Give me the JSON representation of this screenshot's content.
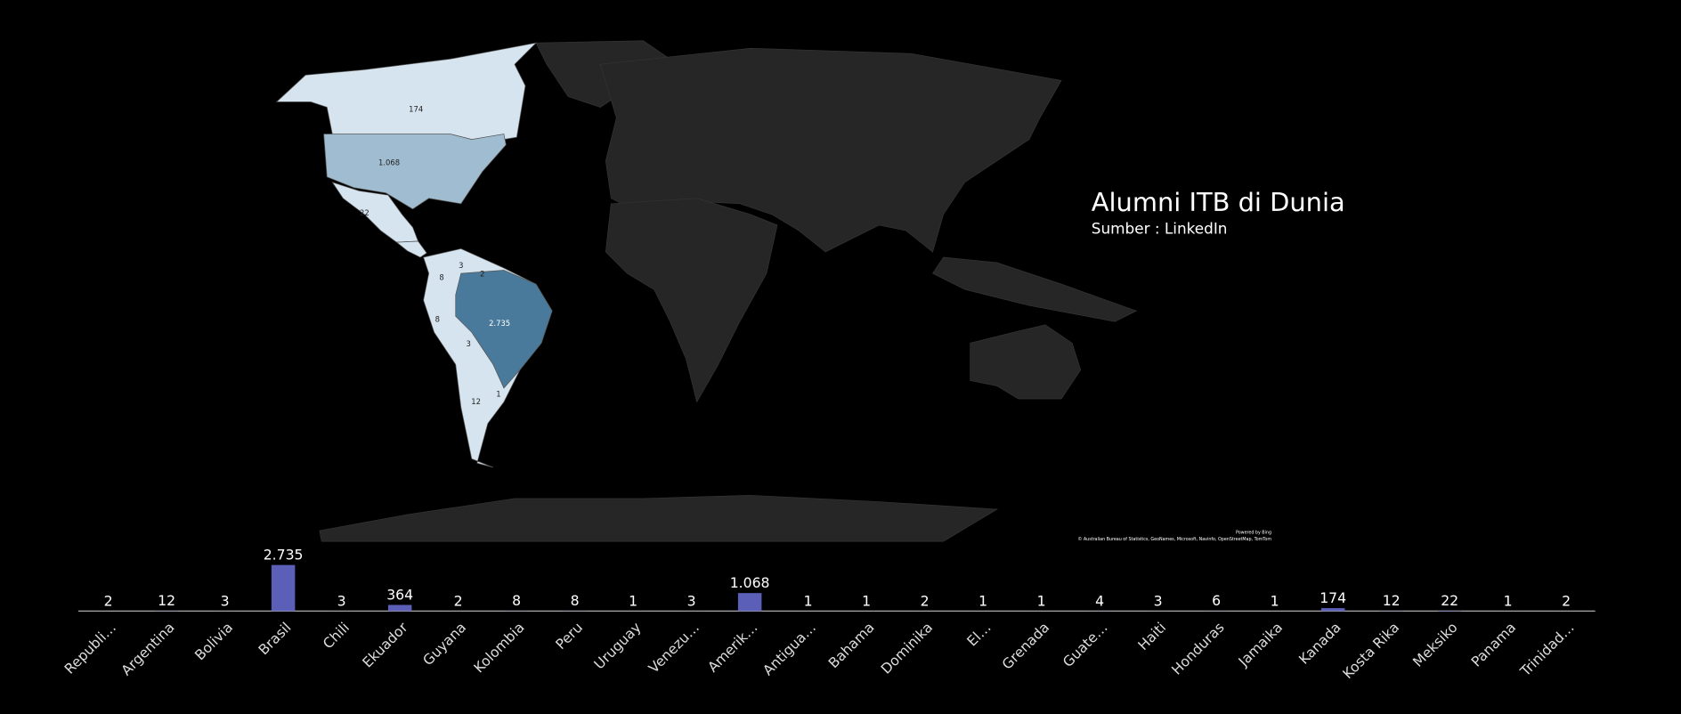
{
  "chart_data": {
    "type": "bar",
    "title": "Alumni ITB di Dunia",
    "subtitle": "Sumber : LinkedIn",
    "attribution": [
      "Powered by Bing",
      "© Australian Bureau of Statistics, GeoNames, Microsoft, Navinfo, OpenStreetMap, TomTom"
    ],
    "categories": [
      "Republi…",
      "Argentina",
      "Bolivia",
      "Brasil",
      "Chili",
      "Ekuador",
      "Guyana",
      "Kolombia",
      "Peru",
      "Uruguay",
      "Venezu…",
      "Amerik…",
      "Antigua…",
      "Bahama",
      "Dominika",
      "El…",
      "Grenada",
      "Guate…",
      "Haiti",
      "Honduras",
      "Jamaika",
      "Kanada",
      "Kosta Rika",
      "Meksiko",
      "Panama",
      "Trinidad…"
    ],
    "values": [
      2,
      12,
      3,
      2735,
      3,
      364,
      2,
      8,
      8,
      1,
      3,
      1068,
      1,
      1,
      2,
      1,
      1,
      4,
      3,
      6,
      1,
      174,
      12,
      22,
      1,
      2
    ],
    "value_labels": [
      "2",
      "12",
      "3",
      "2.735",
      "3",
      "364",
      "2",
      "8",
      "8",
      "1",
      "3",
      "1.068",
      "1",
      "1",
      "2",
      "1",
      "1",
      "4",
      "3",
      "6",
      "1",
      "174",
      "12",
      "22",
      "1",
      "2"
    ],
    "color": "#5c5fb8",
    "ylim": [
      0,
      2800
    ]
  }
}
